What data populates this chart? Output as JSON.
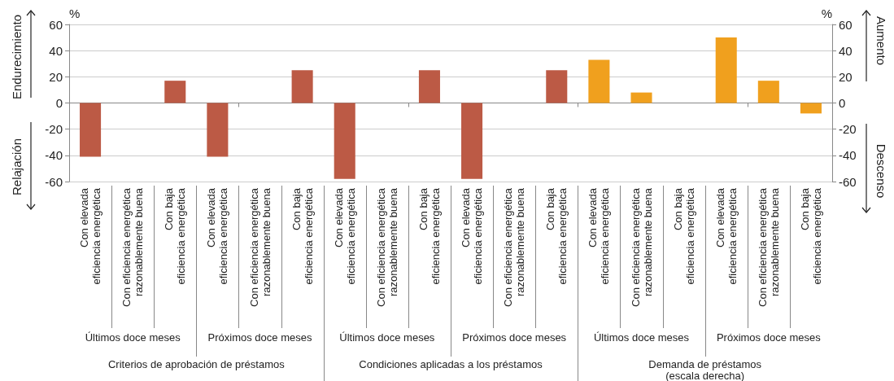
{
  "chart_data": {
    "type": "bar",
    "categories": [
      "Con elevada\neficiencia energética",
      "Con eficiencia energética\nrazonablemente buena",
      "Con baja\neficiencia energética",
      "Con elevada\neficiencia energética",
      "Con eficiencia energética\nrazonablemente buena",
      "Con baja\neficiencia energética",
      "Con elevada\neficiencia energética",
      "Con eficiencia energética\nrazonablemente buena",
      "Con baja\neficiencia energética",
      "Con elevada\neficiencia energética",
      "Con eficiencia energética\nrazonablemente buena",
      "Con baja\neficiencia energética",
      "Con elevada\neficiencia energética",
      "Con eficiencia energética\nrazonablemente buena",
      "Con baja\neficiencia energética",
      "Con elevada\neficiencia energética",
      "Con eficiencia energética\nrazonablemente buena",
      "Con baja\neficiencia energética"
    ],
    "series": [
      {
        "color": "#bc5a45",
        "values": [
          -41,
          0,
          17,
          -41,
          0,
          25,
          -58,
          0,
          25,
          -58,
          0,
          25,
          null,
          null,
          null,
          null,
          null,
          null
        ]
      },
      {
        "color": "#f0a01e",
        "axis": "y2",
        "values": [
          null,
          null,
          null,
          null,
          null,
          null,
          null,
          null,
          null,
          null,
          null,
          null,
          33,
          8,
          0,
          50,
          17,
          -8
        ]
      }
    ],
    "ylabel": "%",
    "y2label": "%",
    "ylim": [
      -60,
      60
    ],
    "yticks": [
      -60,
      -40,
      -20,
      0,
      20,
      40,
      60
    ],
    "y2lim": [
      -60,
      60
    ],
    "y2ticks": [
      -60,
      -40,
      -20,
      0,
      20,
      40,
      60
    ],
    "grid": "y",
    "annotations": [
      "Últimos doce meses",
      "Próximos doce meses",
      "Últimos doce meses",
      "Próximos doce meses",
      "Últimos doce meses",
      "Próximos doce meses",
      "Criterios de aprobación de préstamos",
      "Condiciones aplicadas a los préstamos",
      "Demanda de préstamos\n(escala derecha)",
      "Endurecimiento",
      "Relajación",
      "Aumento",
      "Descenso"
    ]
  }
}
